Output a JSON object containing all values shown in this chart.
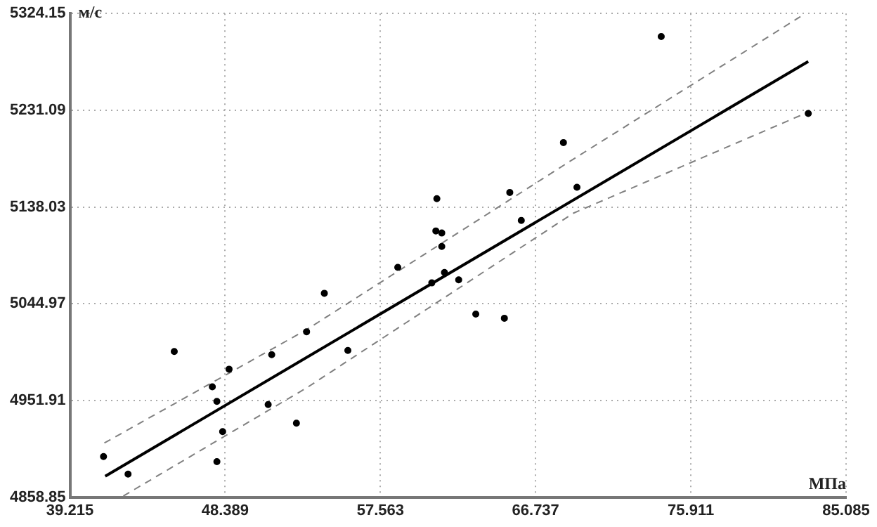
{
  "chart_data": {
    "type": "scatter",
    "xlabel": "МПа",
    "ylabel": "м/с",
    "xlim": [
      39.215,
      85.085
    ],
    "xticks": [
      39.215,
      48.389,
      57.563,
      66.737,
      75.911,
      85.085
    ],
    "ylim": [
      4858.85,
      5324.15
    ],
    "yticks": [
      4858.85,
      4951.91,
      5044.97,
      5138.03,
      5231.09,
      5324.15
    ],
    "grid": true,
    "legend": false,
    "series": [
      {
        "color": "#000000",
        "marker": "circle",
        "x": [
          41.2,
          42.65,
          45.38,
          47.63,
          47.9,
          48.24,
          47.9,
          48.62,
          51.14,
          50.93,
          52.6,
          53.2,
          54.25,
          55.64,
          58.59,
          60.6,
          61.35,
          62.19,
          60.9,
          60.84,
          61.19,
          61.19,
          63.2,
          64.89,
          65.21,
          65.89,
          68.38,
          69.18,
          74.16,
          82.85
        ],
        "values": [
          4898,
          4881,
          4999,
          4965,
          4951,
          4922,
          4893,
          4982,
          4996,
          4948,
          4930,
          5018,
          5055,
          5000,
          5080,
          5065,
          5075,
          5068,
          5146,
          5115,
          5113,
          5100,
          5035,
          5031,
          5152,
          5125,
          5200,
          5157,
          5302,
          5228
        ]
      },
      {
        "type": "line",
        "color": "#000000",
        "line_style": "solid",
        "marker": "none",
        "x": [
          41.3,
          82.85
        ],
        "values": [
          4879,
          5278
        ]
      },
      {
        "type": "line",
        "color": "#808080",
        "line_style": "dashed",
        "marker": "none",
        "x": [
          41.25,
          53.2,
          68.96,
          82.57
        ],
        "values": [
          4911,
          5020,
          5184,
          5323
        ]
      },
      {
        "type": "line",
        "color": "#808080",
        "line_style": "dashed",
        "marker": "none",
        "x": [
          42.37,
          53.2,
          68.96,
          82.81
        ],
        "values": [
          4860,
          4964,
          5132,
          5229
        ]
      }
    ]
  }
}
